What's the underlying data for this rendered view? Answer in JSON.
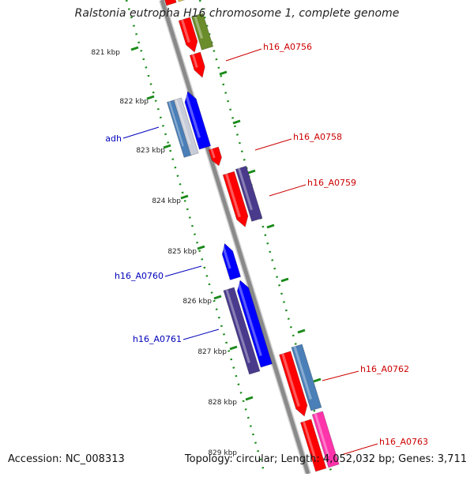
{
  "title": "Ralstonia eutropha H16 chromosome 1, complete genome",
  "footer": {
    "accession": "Accession: NC_008313",
    "topology": "Topology: circular; Length: 4,052,032 bp; Genes: 3,711"
  },
  "colors": {
    "backbone": "#8a8a8a",
    "tick_green": "#1a8a1a",
    "forward_label": "#cc0000",
    "reverse_label": "#0000bb",
    "red": "#ff0000",
    "blue": "#0000ff",
    "purple": "#4a3a8c",
    "steel_blue": "#4a7fb8",
    "olive": "#6b8c2a",
    "pink": "#ff33aa",
    "yellow": "#d9c35a"
  },
  "scale_ticks": [
    "821 kbp",
    "822 kbp",
    "823 kbp",
    "824 kbp",
    "825 kbp",
    "826 kbp",
    "827 kbp",
    "828 kbp",
    "829 kbp"
  ],
  "gene_labels": [
    {
      "text": "h16_A0756",
      "strand": "forward"
    },
    {
      "text": "h16_A0758",
      "strand": "forward"
    },
    {
      "text": "h16_A0759",
      "strand": "forward"
    },
    {
      "text": "h16_A0762",
      "strand": "forward"
    },
    {
      "text": "h16_A0763",
      "strand": "forward"
    },
    {
      "text": "adh",
      "strand": "reverse"
    },
    {
      "text": "h16_A0760",
      "strand": "reverse"
    },
    {
      "text": "h16_A0761",
      "strand": "reverse"
    }
  ]
}
